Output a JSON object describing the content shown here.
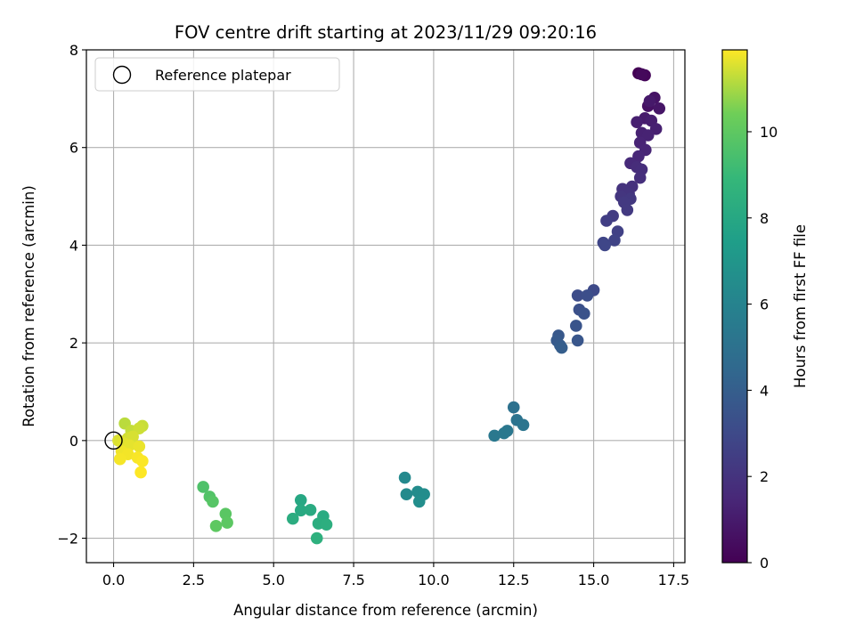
{
  "chart_data": {
    "type": "scatter",
    "title": "FOV centre drift starting at 2023/11/29 09:20:16",
    "xlabel": "Angular distance from reference (arcmin)",
    "ylabel": "Rotation from reference (arcmin)",
    "xlim": [
      -0.85,
      17.85
    ],
    "ylim": [
      -2.5,
      8.0
    ],
    "xticks": [
      0.0,
      2.5,
      5.0,
      7.5,
      10.0,
      12.5,
      15.0,
      17.5
    ],
    "xtick_labels": [
      "0.0",
      "2.5",
      "5.0",
      "7.5",
      "10.0",
      "12.5",
      "15.0",
      "17.5"
    ],
    "yticks": [
      -2,
      0,
      2,
      4,
      6,
      8
    ],
    "ytick_labels": [
      "−2",
      "0",
      "2",
      "4",
      "6",
      "8"
    ],
    "grid": true,
    "legend": {
      "position": "top-left",
      "entries": [
        "Reference platepar"
      ]
    },
    "colorbar": {
      "label": "Hours from first FF file",
      "colormap": "viridis",
      "range": [
        0,
        11.9
      ],
      "ticks": [
        0,
        2,
        4,
        6,
        8,
        10
      ],
      "tick_labels": [
        "0",
        "2",
        "4",
        "6",
        "8",
        "10"
      ]
    },
    "reference_point": {
      "x": 0.0,
      "y": 0.0,
      "label": "Reference platepar"
    },
    "points": [
      {
        "x": 16.4,
        "y": 7.52,
        "c": 0.0
      },
      {
        "x": 16.6,
        "y": 7.48,
        "c": 0.2
      },
      {
        "x": 16.5,
        "y": 7.5,
        "c": 0.3
      },
      {
        "x": 16.7,
        "y": 6.85,
        "c": 0.6
      },
      {
        "x": 16.9,
        "y": 7.02,
        "c": 0.7
      },
      {
        "x": 17.05,
        "y": 6.8,
        "c": 0.8
      },
      {
        "x": 16.75,
        "y": 6.95,
        "c": 0.9
      },
      {
        "x": 16.6,
        "y": 6.6,
        "c": 1.0
      },
      {
        "x": 16.8,
        "y": 6.55,
        "c": 1.1
      },
      {
        "x": 16.35,
        "y": 6.52,
        "c": 1.15
      },
      {
        "x": 16.95,
        "y": 6.38,
        "c": 1.2
      },
      {
        "x": 16.5,
        "y": 6.3,
        "c": 1.25
      },
      {
        "x": 16.7,
        "y": 6.25,
        "c": 1.3
      },
      {
        "x": 16.45,
        "y": 6.1,
        "c": 1.35
      },
      {
        "x": 16.62,
        "y": 5.95,
        "c": 1.4
      },
      {
        "x": 16.4,
        "y": 5.82,
        "c": 1.5
      },
      {
        "x": 16.15,
        "y": 5.68,
        "c": 1.6
      },
      {
        "x": 16.35,
        "y": 5.6,
        "c": 1.7
      },
      {
        "x": 16.5,
        "y": 5.55,
        "c": 1.75
      },
      {
        "x": 16.45,
        "y": 5.38,
        "c": 1.8
      },
      {
        "x": 16.2,
        "y": 5.2,
        "c": 1.9
      },
      {
        "x": 15.9,
        "y": 5.15,
        "c": 2.0
      },
      {
        "x": 16.1,
        "y": 5.05,
        "c": 2.05
      },
      {
        "x": 15.85,
        "y": 5.0,
        "c": 2.1
      },
      {
        "x": 16.15,
        "y": 4.95,
        "c": 2.2
      },
      {
        "x": 15.95,
        "y": 4.88,
        "c": 2.25
      },
      {
        "x": 16.05,
        "y": 4.72,
        "c": 2.3
      },
      {
        "x": 15.6,
        "y": 4.6,
        "c": 2.4
      },
      {
        "x": 15.4,
        "y": 4.5,
        "c": 2.5
      },
      {
        "x": 15.75,
        "y": 4.28,
        "c": 2.6
      },
      {
        "x": 15.65,
        "y": 4.1,
        "c": 2.7
      },
      {
        "x": 15.3,
        "y": 4.05,
        "c": 2.8
      },
      {
        "x": 15.35,
        "y": 4.0,
        "c": 2.85
      },
      {
        "x": 15.0,
        "y": 3.08,
        "c": 3.0
      },
      {
        "x": 14.5,
        "y": 2.97,
        "c": 3.1
      },
      {
        "x": 14.8,
        "y": 2.97,
        "c": 3.2
      },
      {
        "x": 14.55,
        "y": 2.68,
        "c": 3.3
      },
      {
        "x": 14.7,
        "y": 2.6,
        "c": 3.4
      },
      {
        "x": 14.45,
        "y": 2.35,
        "c": 3.5
      },
      {
        "x": 14.5,
        "y": 2.05,
        "c": 3.6
      },
      {
        "x": 13.9,
        "y": 2.15,
        "c": 3.7
      },
      {
        "x": 13.85,
        "y": 2.05,
        "c": 3.8
      },
      {
        "x": 13.95,
        "y": 1.95,
        "c": 3.9
      },
      {
        "x": 14.0,
        "y": 1.9,
        "c": 4.0
      },
      {
        "x": 12.5,
        "y": 0.68,
        "c": 5.0
      },
      {
        "x": 12.6,
        "y": 0.42,
        "c": 5.1
      },
      {
        "x": 12.8,
        "y": 0.32,
        "c": 5.2
      },
      {
        "x": 12.3,
        "y": 0.2,
        "c": 5.3
      },
      {
        "x": 12.2,
        "y": 0.15,
        "c": 5.35
      },
      {
        "x": 11.9,
        "y": 0.1,
        "c": 5.4
      },
      {
        "x": 9.1,
        "y": -0.76,
        "c": 6.3
      },
      {
        "x": 9.15,
        "y": -1.1,
        "c": 6.4
      },
      {
        "x": 9.5,
        "y": -1.05,
        "c": 6.5
      },
      {
        "x": 9.7,
        "y": -1.1,
        "c": 6.55
      },
      {
        "x": 9.55,
        "y": -1.25,
        "c": 6.6
      },
      {
        "x": 5.85,
        "y": -1.22,
        "c": 8.0
      },
      {
        "x": 5.85,
        "y": -1.43,
        "c": 8.1
      },
      {
        "x": 6.15,
        "y": -1.42,
        "c": 8.15
      },
      {
        "x": 6.55,
        "y": -1.55,
        "c": 8.2
      },
      {
        "x": 5.6,
        "y": -1.6,
        "c": 8.3
      },
      {
        "x": 6.4,
        "y": -1.7,
        "c": 8.35
      },
      {
        "x": 6.65,
        "y": -1.72,
        "c": 8.4
      },
      {
        "x": 6.35,
        "y": -2.0,
        "c": 8.5
      },
      {
        "x": 2.8,
        "y": -0.95,
        "c": 9.6
      },
      {
        "x": 3.0,
        "y": -1.15,
        "c": 9.7
      },
      {
        "x": 3.1,
        "y": -1.25,
        "c": 9.8
      },
      {
        "x": 3.5,
        "y": -1.5,
        "c": 9.9
      },
      {
        "x": 3.55,
        "y": -1.68,
        "c": 9.95
      },
      {
        "x": 3.2,
        "y": -1.75,
        "c": 10.0
      },
      {
        "x": 0.35,
        "y": 0.35,
        "c": 11.2
      },
      {
        "x": 0.55,
        "y": 0.2,
        "c": 11.3
      },
      {
        "x": 0.9,
        "y": 0.3,
        "c": 11.35
      },
      {
        "x": 0.8,
        "y": 0.25,
        "c": 11.4
      },
      {
        "x": 0.45,
        "y": 0.05,
        "c": 11.45
      },
      {
        "x": 0.6,
        "y": 0.08,
        "c": 11.5
      },
      {
        "x": 0.15,
        "y": 0.0,
        "c": 11.55
      },
      {
        "x": 0.3,
        "y": -0.05,
        "c": 11.6
      },
      {
        "x": 0.5,
        "y": -0.1,
        "c": 11.65
      },
      {
        "x": 0.8,
        "y": -0.12,
        "c": 11.7
      },
      {
        "x": 0.25,
        "y": -0.22,
        "c": 11.75
      },
      {
        "x": 0.45,
        "y": -0.28,
        "c": 11.8
      },
      {
        "x": 0.2,
        "y": -0.38,
        "c": 11.82
      },
      {
        "x": 0.75,
        "y": -0.35,
        "c": 11.85
      },
      {
        "x": 0.9,
        "y": -0.42,
        "c": 11.88
      },
      {
        "x": 0.85,
        "y": -0.65,
        "c": 11.9
      }
    ]
  }
}
